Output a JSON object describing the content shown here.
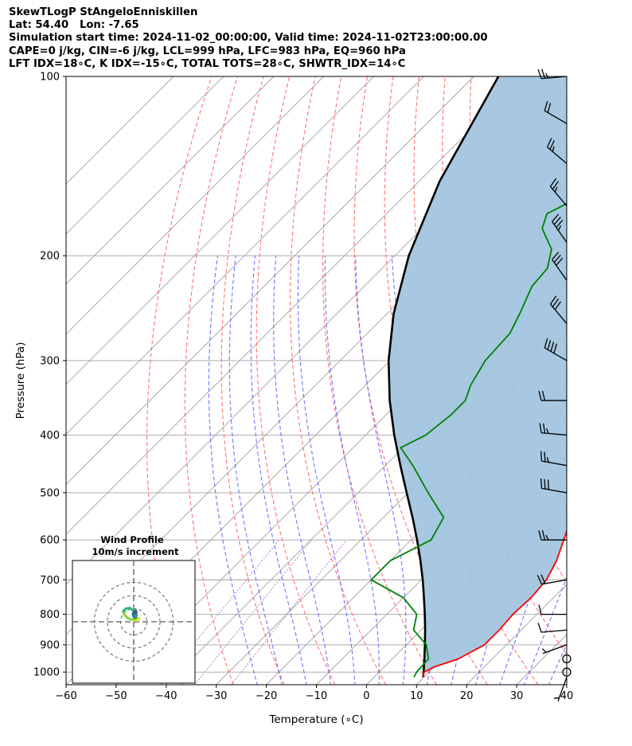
{
  "header": {
    "title": "SkewTLogP StAngeloEnniskillen",
    "location": "Lat: 54.40   Lon: -7.65",
    "times": "Simulation start time: 2024-11-02_00:00:00, Valid time: 2024-11-02T23:00:00.00",
    "params1": "CAPE=0 j/kg, CIN=-6 j/kg, LCL=999 hPa, LFC=983 hPa, EQ=960 hPa",
    "params2": "LFT IDX=18∘C, K IDX=-15∘C, TOTAL TOTS=28∘C, SHWTR_IDX=14∘C"
  },
  "colors": {
    "temperature": "#ff0000",
    "dewpoint": "#008000",
    "parcel": "#000000",
    "fill": "#a2c5de",
    "dry_adiabat": "#ff6464",
    "moist_adiabat": "#6464ff",
    "mixing_ratio": "#b060d0",
    "isotherm": "#a0a0a0",
    "hodograph": [
      "#e6e61e",
      "#8ed444",
      "#38b880",
      "#2a8a8c",
      "#3a5a8c"
    ]
  },
  "chart_data": {
    "type": "line",
    "subtype": "skew-T log-P diagram",
    "xlabel": "Temperature (∘C)",
    "ylabel": "Pressure (hPa)",
    "xlim": [
      -60,
      40
    ],
    "ylim": [
      1050,
      100
    ],
    "y_scale": "log",
    "grid": true,
    "x_ticks": [
      -60,
      -50,
      -40,
      -30,
      -20,
      -10,
      0,
      10,
      20,
      30,
      40
    ],
    "y_ticks": [
      1000,
      900,
      800,
      700,
      600,
      500,
      400,
      300,
      200,
      100
    ],
    "series": [
      {
        "name": "temperature",
        "points": [
          [
            1020,
            9.8
          ],
          [
            1000,
            9.0
          ],
          [
            980,
            10.0
          ],
          [
            950,
            13.2
          ],
          [
            900,
            15.6
          ],
          [
            850,
            15.6
          ],
          [
            800,
            15.2
          ],
          [
            750,
            15.5
          ],
          [
            700,
            15.0
          ],
          [
            650,
            13.2
          ],
          [
            600,
            10.5
          ],
          [
            550,
            7.5
          ],
          [
            500,
            4.0
          ],
          [
            450,
            0.5
          ],
          [
            400,
            -3.5
          ],
          [
            350,
            -8.5
          ],
          [
            320,
            -11.5
          ],
          [
            300,
            -13.5
          ],
          [
            275,
            -15.5
          ],
          [
            250,
            -17.5
          ],
          [
            225,
            -21.0
          ],
          [
            200,
            -25.0
          ],
          [
            185,
            -28.5
          ],
          [
            180,
            -30.5
          ],
          [
            170,
            -33.0
          ],
          [
            150,
            -38.0
          ],
          [
            130,
            -43.5
          ],
          [
            115,
            -47.0
          ],
          [
            100,
            -51.5
          ]
        ]
      },
      {
        "name": "dewpoint",
        "points": [
          [
            1020,
            8.0
          ],
          [
            1000,
            7.5
          ],
          [
            950,
            7.2
          ],
          [
            900,
            4.0
          ],
          [
            850,
            -1.5
          ],
          [
            800,
            -4.0
          ],
          [
            750,
            -10.0
          ],
          [
            700,
            -20.0
          ],
          [
            650,
            -20.0
          ],
          [
            600,
            -16.0
          ],
          [
            550,
            -18.0
          ],
          [
            500,
            -26.0
          ],
          [
            450,
            -34.5
          ],
          [
            420,
            -40.5
          ],
          [
            400,
            -38.0
          ],
          [
            370,
            -37.0
          ],
          [
            350,
            -37.0
          ],
          [
            330,
            -39.0
          ],
          [
            300,
            -41.0
          ],
          [
            270,
            -41.5
          ],
          [
            250,
            -43.5
          ],
          [
            225,
            -46.5
          ],
          [
            210,
            -47.0
          ],
          [
            195,
            -50.0
          ],
          [
            180,
            -56.0
          ],
          [
            170,
            -58.0
          ],
          [
            160,
            -55.0
          ],
          [
            150,
            -54.0
          ],
          [
            140,
            -52.5
          ],
          [
            130,
            -53.0
          ],
          [
            120,
            -55.0
          ],
          [
            110,
            -58.0
          ],
          [
            100,
            -62.0
          ]
        ]
      },
      {
        "name": "parcel",
        "points": [
          [
            1020,
            9.8
          ],
          [
            1000,
            8.9
          ],
          [
            950,
            6.4
          ],
          [
            900,
            3.7
          ],
          [
            850,
            0.8
          ],
          [
            800,
            -2.4
          ],
          [
            750,
            -5.9
          ],
          [
            700,
            -9.7
          ],
          [
            650,
            -14.0
          ],
          [
            600,
            -18.8
          ],
          [
            550,
            -24.2
          ],
          [
            500,
            -30.3
          ],
          [
            450,
            -37.0
          ],
          [
            400,
            -44.3
          ],
          [
            350,
            -52.1
          ],
          [
            300,
            -60.3
          ],
          [
            250,
            -68.7
          ],
          [
            200,
            -77.2
          ],
          [
            150,
            -85.9
          ],
          [
            100,
            -95.1
          ]
        ]
      }
    ],
    "wind_barbs": [
      {
        "p": 1020,
        "speed_kt": 3,
        "dir": 200
      },
      {
        "p": 1000,
        "speed_kt": 0,
        "dir": 0
      },
      {
        "p": 950,
        "speed_kt": 0,
        "dir": 0
      },
      {
        "p": 900,
        "speed_kt": 5,
        "dir": 250
      },
      {
        "p": 850,
        "speed_kt": 10,
        "dir": 265
      },
      {
        "p": 800,
        "speed_kt": 10,
        "dir": 270
      },
      {
        "p": 700,
        "speed_kt": 20,
        "dir": 260
      },
      {
        "p": 600,
        "speed_kt": 25,
        "dir": 270
      },
      {
        "p": 500,
        "speed_kt": 30,
        "dir": 280
      },
      {
        "p": 450,
        "speed_kt": 25,
        "dir": 280
      },
      {
        "p": 400,
        "speed_kt": 25,
        "dir": 275
      },
      {
        "p": 350,
        "speed_kt": 20,
        "dir": 270
      },
      {
        "p": 300,
        "speed_kt": 40,
        "dir": 300
      },
      {
        "p": 260,
        "speed_kt": 30,
        "dir": 320
      },
      {
        "p": 220,
        "speed_kt": 30,
        "dir": 325
      },
      {
        "p": 190,
        "speed_kt": 35,
        "dir": 325
      },
      {
        "p": 165,
        "speed_kt": 25,
        "dir": 320
      },
      {
        "p": 140,
        "speed_kt": 25,
        "dir": 310
      },
      {
        "p": 120,
        "speed_kt": 20,
        "dir": 300
      },
      {
        "p": 100,
        "speed_kt": 25,
        "dir": 265
      }
    ],
    "hodograph": {
      "title": "Wind Profile",
      "subtitle": "10m/s increment",
      "rings_ms": [
        10,
        20,
        30
      ],
      "points_uv": [
        [
          0.5,
          1.5
        ],
        [
          2.0,
          2.5
        ],
        [
          4.0,
          2.5
        ],
        [
          2.5,
          1.0
        ],
        [
          0.0,
          1.5
        ],
        [
          -2.5,
          2.0
        ],
        [
          -5.0,
          3.0
        ],
        [
          -7.0,
          5.5
        ],
        [
          -8.0,
          8.0
        ],
        [
          -6.0,
          10.0
        ],
        [
          -3.0,
          10.5
        ],
        [
          -1.0,
          9.0
        ],
        [
          1.0,
          6.5
        ],
        [
          2.0,
          5.0
        ],
        [
          1.5,
          3.0
        ],
        [
          0.0,
          4.0
        ],
        [
          -0.5,
          6.0
        ],
        [
          0.5,
          7.5
        ],
        [
          1.5,
          8.5
        ],
        [
          2.0,
          7.0
        ]
      ]
    }
  }
}
